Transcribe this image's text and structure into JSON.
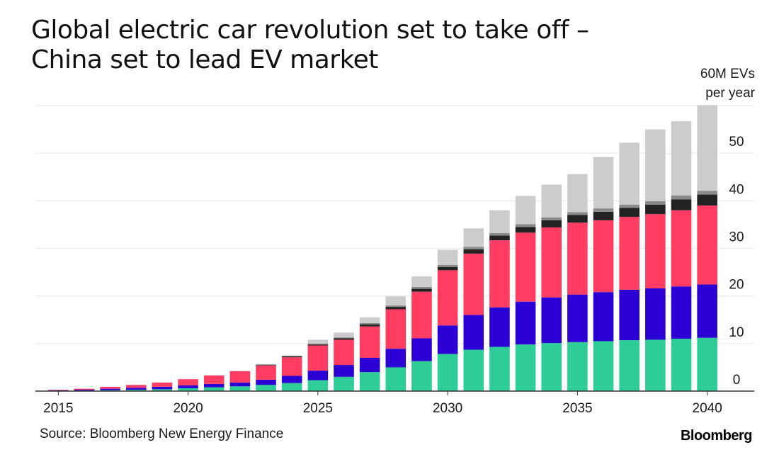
{
  "title_line1": "Global electric car revolution set to take off –",
  "title_line2": "China set to lead EV market",
  "source": "Source: Bloomberg New Energy Finance",
  "brand": "Bloomberg",
  "colors": {
    "series": [
      "#2ecc96",
      "#2a00d4",
      "#ff3d63",
      "#222222",
      "#8a8a8a",
      "#cccccc"
    ],
    "grid": "#e6e6e6",
    "axis": "#333333",
    "text": "#1a1a1a"
  },
  "chart_data": {
    "type": "bar",
    "stacked": true,
    "unit_label": [
      "60M EVs",
      "per year"
    ],
    "ylim": [
      0,
      60
    ],
    "yticks": [
      0,
      10,
      20,
      30,
      40,
      50
    ],
    "ytick_labels": [
      "0",
      "10",
      "20",
      "30",
      "40",
      "50"
    ],
    "y_axis_position": "right",
    "grid": true,
    "xticks": [
      "2015",
      "2020",
      "2025",
      "2030",
      "2035",
      "2040"
    ],
    "categories": [
      "2015",
      "2016",
      "2017",
      "2018",
      "2019",
      "2020",
      "2021",
      "2022",
      "2023",
      "2024",
      "2025",
      "2026",
      "2027",
      "2028",
      "2029",
      "2030",
      "2031",
      "2032",
      "2033",
      "2034",
      "2035",
      "2036",
      "2037",
      "2038",
      "2039",
      "2040"
    ],
    "series": [
      {
        "values": [
          0.1,
          0.1,
          0.2,
          0.3,
          0.4,
          0.6,
          0.8,
          1.0,
          1.3,
          1.7,
          2.3,
          3.0,
          4.0,
          5.0,
          6.3,
          7.8,
          8.7,
          9.3,
          9.8,
          10.1,
          10.3,
          10.5,
          10.7,
          10.8,
          11.0,
          11.2
        ]
      },
      {
        "values": [
          0.1,
          0.2,
          0.3,
          0.4,
          0.5,
          0.6,
          0.7,
          0.8,
          1.1,
          1.5,
          2.0,
          2.5,
          3.0,
          3.9,
          4.8,
          6.0,
          7.3,
          8.3,
          9.0,
          9.6,
          10.0,
          10.3,
          10.6,
          10.8,
          11.0,
          11.2
        ]
      },
      {
        "values": [
          0.1,
          0.2,
          0.4,
          0.6,
          0.9,
          1.3,
          1.8,
          2.4,
          3.0,
          3.9,
          5.3,
          5.3,
          6.6,
          8.3,
          9.8,
          11.6,
          12.9,
          14.1,
          14.5,
          14.7,
          15.1,
          15.1,
          15.3,
          15.6,
          16.0,
          16.6
        ]
      },
      {
        "values": [
          0,
          0,
          0,
          0,
          0,
          0,
          0,
          0,
          0.1,
          0.2,
          0.2,
          0.3,
          0.4,
          0.5,
          0.6,
          0.7,
          0.9,
          1.0,
          1.2,
          1.5,
          1.6,
          1.8,
          1.9,
          2.0,
          2.3,
          2.3
        ]
      },
      {
        "values": [
          0,
          0,
          0,
          0,
          0,
          0,
          0,
          0,
          0.1,
          0.1,
          0.2,
          0.2,
          0.3,
          0.3,
          0.4,
          0.4,
          0.5,
          0.5,
          0.6,
          0.6,
          0.6,
          0.7,
          0.7,
          0.7,
          0.8,
          0.8
        ]
      },
      {
        "values": [
          0,
          0,
          0,
          0,
          0,
          0,
          0,
          0,
          0.1,
          0.1,
          0.8,
          1.0,
          1.2,
          1.9,
          2.2,
          3.2,
          3.9,
          4.8,
          5.9,
          6.9,
          8.0,
          10.8,
          13.0,
          15.1,
          15.6,
          18.0
        ]
      }
    ]
  }
}
